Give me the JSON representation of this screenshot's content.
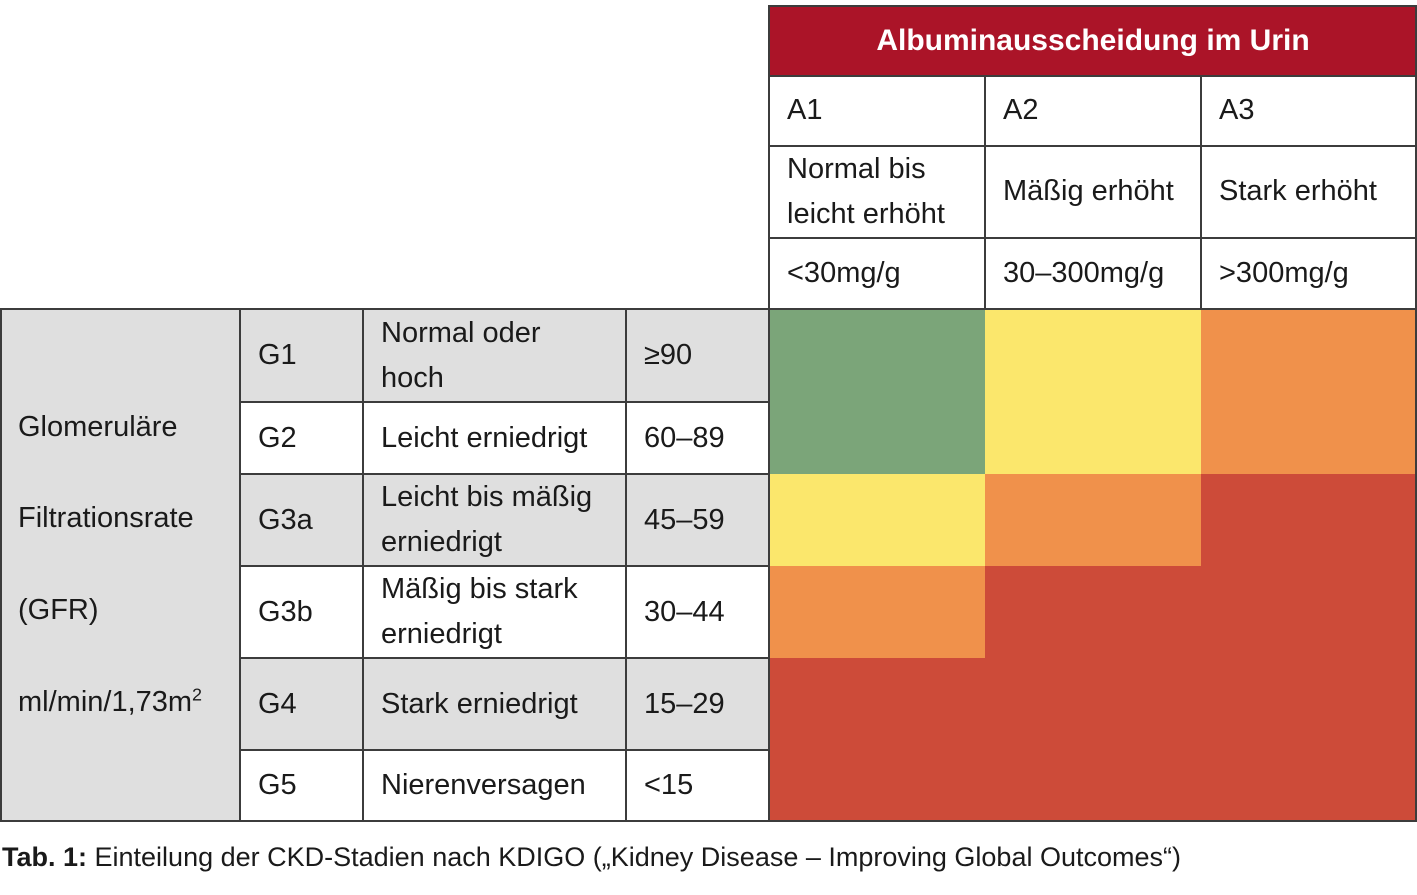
{
  "albumin": {
    "header": "Albuminausscheidung im Urin",
    "columns": [
      {
        "code": "A1",
        "description": "Normal bis\nleicht erhöht",
        "range": "<30mg/g"
      },
      {
        "code": "A2",
        "description": "Mäßig erhöht",
        "range": "30–300mg/g"
      },
      {
        "code": "A3",
        "description": "Stark erhöht",
        "range": ">300mg/g"
      }
    ]
  },
  "gfr": {
    "label_lines": [
      "Glomeruläre",
      "Filtrationsrate",
      "(GFR)"
    ],
    "unit_base": "ml/min/1,73m",
    "unit_exp": "2",
    "rows": [
      {
        "stage": "G1",
        "description": "Normal oder\nhoch",
        "range": "≥90",
        "shaded": true,
        "risk": [
          "green",
          "yellow",
          "orange"
        ]
      },
      {
        "stage": "G2",
        "description": "Leicht erniedrigt",
        "range": "60–89",
        "shaded": false,
        "risk": [
          "green",
          "yellow",
          "orange"
        ]
      },
      {
        "stage": "G3a",
        "description": "Leicht bis mäßig\nerniedrigt",
        "range": "45–59",
        "shaded": true,
        "risk": [
          "yellow",
          "orange",
          "red"
        ]
      },
      {
        "stage": "G3b",
        "description": "Mäßig bis stark\nerniedrigt",
        "range": "30–44",
        "shaded": false,
        "risk": [
          "orange",
          "red",
          "red"
        ]
      },
      {
        "stage": "G4",
        "description": "Stark erniedrigt",
        "range": "15–29",
        "shaded": true,
        "risk": [
          "red",
          "red",
          "red"
        ]
      },
      {
        "stage": "G5",
        "description": "Nierenversagen",
        "range": "<15",
        "shaded": false,
        "risk": [
          "red",
          "red",
          "red"
        ]
      }
    ]
  },
  "risk_colors": {
    "green": "#7ba579",
    "yellow": "#fbe76c",
    "orange": "#f0914b",
    "red": "#cd4b39"
  },
  "caption": {
    "label": "Tab. 1:",
    "text": " Einteilung der CKD-Stadien nach KDIGO („Kidney Disease – Improving Global Outcomes“)"
  }
}
